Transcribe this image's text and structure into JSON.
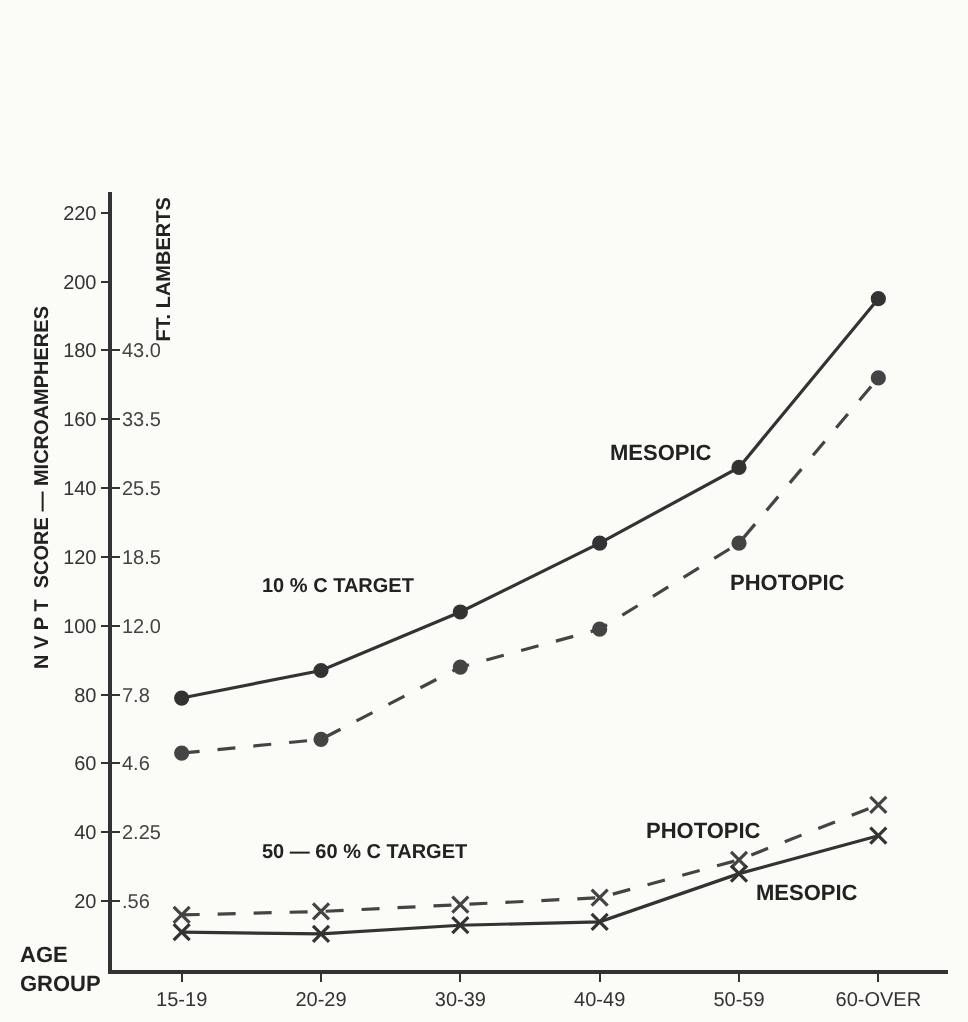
{
  "chart_data": {
    "type": "line",
    "xlabel": "AGE GROUP",
    "ylabel": "N V P T  SCORE — MICROAMPHERES",
    "y2label": "FT. LAMBERTS",
    "categories": [
      "15-19",
      "20-29",
      "30-39",
      "40-49",
      "50-59",
      "60-OVER"
    ],
    "series": [
      {
        "name": "MESOPIC",
        "color": "#333333",
        "marker": "circle",
        "line_style": "solid",
        "values": [
          79,
          87,
          104,
          124,
          146,
          195
        ]
      },
      {
        "name": "PHOTOPIC",
        "color": "#444444",
        "marker": "circle",
        "line_style": "dashed",
        "values": [
          63,
          67,
          88,
          99,
          124,
          172
        ]
      },
      {
        "name": "PHOTOPIC",
        "color": "#444444",
        "marker": "cross",
        "line_style": "dashed",
        "values": [
          16,
          17,
          19,
          21,
          32,
          48
        ]
      },
      {
        "name": "MESOPIC",
        "color": "#333333",
        "marker": "cross",
        "line_style": "solid",
        "values": [
          11,
          10.5,
          13,
          14,
          28,
          39
        ]
      }
    ],
    "ylim": [
      0,
      226
    ],
    "yticks": [
      20,
      40,
      60,
      80,
      100,
      120,
      140,
      160,
      180,
      200,
      220
    ],
    "y2_categories": [
      null,
      null,
      "43.0",
      "33.5",
      "25.5",
      "18.5",
      "12.0",
      "7.8",
      "4.6",
      "2.25",
      ".56",
      null
    ],
    "annotations": [
      "10 % C TARGET",
      "50 — 60 % C TARGET"
    ],
    "grid": false
  }
}
